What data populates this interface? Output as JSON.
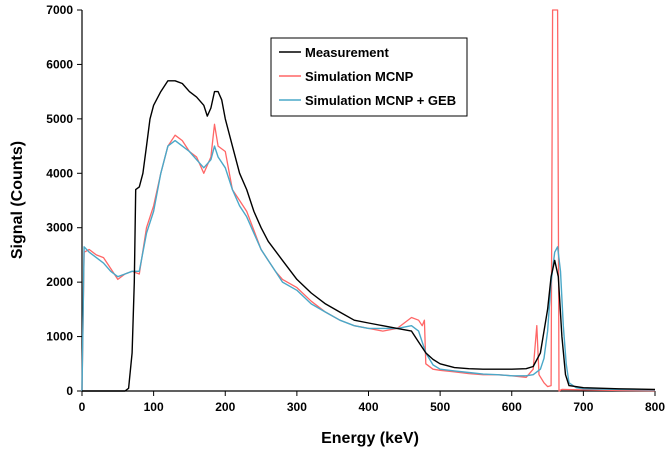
{
  "chart_data": {
    "type": "line",
    "xlabel": "Energy (keV)",
    "ylabel": "Signal (Counts)",
    "xlim": [
      0,
      800
    ],
    "ylim": [
      0,
      7000
    ],
    "x_ticks": [
      "0",
      "100",
      "200",
      "300",
      "400",
      "500",
      "600",
      "700",
      "800"
    ],
    "y_ticks": [
      "0",
      "1000",
      "2000",
      "3000",
      "4000",
      "5000",
      "6000",
      "7000"
    ],
    "grid": false,
    "legend_position": "top-right",
    "series": [
      {
        "name": "Measurement",
        "color": "#000000",
        "points": [
          [
            0,
            0
          ],
          [
            60,
            0
          ],
          [
            65,
            50
          ],
          [
            70,
            700
          ],
          [
            73,
            2000
          ],
          [
            75,
            3700
          ],
          [
            80,
            3750
          ],
          [
            85,
            4000
          ],
          [
            90,
            4500
          ],
          [
            95,
            5000
          ],
          [
            100,
            5250
          ],
          [
            110,
            5500
          ],
          [
            120,
            5700
          ],
          [
            130,
            5700
          ],
          [
            140,
            5650
          ],
          [
            150,
            5500
          ],
          [
            160,
            5400
          ],
          [
            170,
            5250
          ],
          [
            175,
            5050
          ],
          [
            180,
            5200
          ],
          [
            185,
            5500
          ],
          [
            190,
            5500
          ],
          [
            195,
            5350
          ],
          [
            200,
            5000
          ],
          [
            210,
            4500
          ],
          [
            220,
            4000
          ],
          [
            230,
            3700
          ],
          [
            240,
            3300
          ],
          [
            250,
            3000
          ],
          [
            260,
            2750
          ],
          [
            280,
            2400
          ],
          [
            300,
            2050
          ],
          [
            320,
            1800
          ],
          [
            340,
            1600
          ],
          [
            360,
            1450
          ],
          [
            380,
            1300
          ],
          [
            400,
            1250
          ],
          [
            420,
            1200
          ],
          [
            440,
            1150
          ],
          [
            460,
            1100
          ],
          [
            470,
            900
          ],
          [
            480,
            700
          ],
          [
            490,
            580
          ],
          [
            500,
            500
          ],
          [
            520,
            430
          ],
          [
            540,
            410
          ],
          [
            560,
            400
          ],
          [
            580,
            400
          ],
          [
            600,
            400
          ],
          [
            620,
            410
          ],
          [
            630,
            450
          ],
          [
            640,
            700
          ],
          [
            650,
            1500
          ],
          [
            655,
            2100
          ],
          [
            660,
            2400
          ],
          [
            665,
            2100
          ],
          [
            670,
            1000
          ],
          [
            675,
            300
          ],
          [
            680,
            100
          ],
          [
            700,
            60
          ],
          [
            750,
            40
          ],
          [
            800,
            30
          ]
        ]
      },
      {
        "name": "Simulation MCNP",
        "color": "#ff6666",
        "points": [
          [
            0,
            0
          ],
          [
            3,
            2550
          ],
          [
            10,
            2600
          ],
          [
            20,
            2500
          ],
          [
            30,
            2450
          ],
          [
            40,
            2250
          ],
          [
            50,
            2050
          ],
          [
            60,
            2150
          ],
          [
            70,
            2200
          ],
          [
            80,
            2150
          ],
          [
            90,
            3000
          ],
          [
            100,
            3400
          ],
          [
            110,
            4000
          ],
          [
            120,
            4500
          ],
          [
            130,
            4700
          ],
          [
            140,
            4600
          ],
          [
            150,
            4400
          ],
          [
            160,
            4300
          ],
          [
            170,
            4000
          ],
          [
            180,
            4300
          ],
          [
            185,
            4900
          ],
          [
            190,
            4500
          ],
          [
            200,
            4400
          ],
          [
            210,
            3700
          ],
          [
            220,
            3500
          ],
          [
            230,
            3300
          ],
          [
            240,
            2950
          ],
          [
            250,
            2600
          ],
          [
            260,
            2400
          ],
          [
            270,
            2200
          ],
          [
            280,
            2050
          ],
          [
            300,
            1900
          ],
          [
            320,
            1650
          ],
          [
            340,
            1450
          ],
          [
            360,
            1300
          ],
          [
            380,
            1200
          ],
          [
            400,
            1150
          ],
          [
            420,
            1100
          ],
          [
            440,
            1150
          ],
          [
            460,
            1350
          ],
          [
            470,
            1300
          ],
          [
            475,
            1200
          ],
          [
            478,
            1300
          ],
          [
            480,
            500
          ],
          [
            490,
            400
          ],
          [
            500,
            380
          ],
          [
            520,
            350
          ],
          [
            540,
            320
          ],
          [
            560,
            300
          ],
          [
            580,
            300
          ],
          [
            600,
            280
          ],
          [
            620,
            250
          ],
          [
            630,
            400
          ],
          [
            635,
            1200
          ],
          [
            638,
            300
          ],
          [
            645,
            150
          ],
          [
            650,
            80
          ],
          [
            655,
            100
          ],
          [
            657,
            7000
          ],
          [
            664,
            7000
          ],
          [
            666,
            0
          ],
          [
            670,
            30
          ],
          [
            700,
            20
          ],
          [
            750,
            10
          ],
          [
            800,
            5
          ]
        ]
      },
      {
        "name": "Simulation MCNP + GEB",
        "color": "#4aa8c8",
        "points": [
          [
            0,
            0
          ],
          [
            3,
            2650
          ],
          [
            10,
            2550
          ],
          [
            20,
            2450
          ],
          [
            30,
            2350
          ],
          [
            40,
            2200
          ],
          [
            50,
            2100
          ],
          [
            60,
            2150
          ],
          [
            70,
            2200
          ],
          [
            80,
            2200
          ],
          [
            90,
            2900
          ],
          [
            100,
            3300
          ],
          [
            110,
            4000
          ],
          [
            120,
            4500
          ],
          [
            130,
            4600
          ],
          [
            140,
            4500
          ],
          [
            150,
            4400
          ],
          [
            160,
            4250
          ],
          [
            170,
            4100
          ],
          [
            180,
            4250
          ],
          [
            185,
            4500
          ],
          [
            190,
            4300
          ],
          [
            200,
            4100
          ],
          [
            210,
            3700
          ],
          [
            220,
            3400
          ],
          [
            230,
            3200
          ],
          [
            240,
            2900
          ],
          [
            250,
            2600
          ],
          [
            260,
            2400
          ],
          [
            270,
            2200
          ],
          [
            280,
            2000
          ],
          [
            300,
            1850
          ],
          [
            320,
            1600
          ],
          [
            340,
            1450
          ],
          [
            360,
            1300
          ],
          [
            380,
            1200
          ],
          [
            400,
            1150
          ],
          [
            420,
            1150
          ],
          [
            440,
            1150
          ],
          [
            460,
            1200
          ],
          [
            470,
            1100
          ],
          [
            480,
            700
          ],
          [
            490,
            480
          ],
          [
            500,
            400
          ],
          [
            520,
            370
          ],
          [
            540,
            340
          ],
          [
            560,
            310
          ],
          [
            580,
            300
          ],
          [
            600,
            280
          ],
          [
            620,
            280
          ],
          [
            630,
            300
          ],
          [
            640,
            400
          ],
          [
            645,
            600
          ],
          [
            650,
            1100
          ],
          [
            655,
            2000
          ],
          [
            660,
            2550
          ],
          [
            664,
            2650
          ],
          [
            668,
            2200
          ],
          [
            672,
            1200
          ],
          [
            676,
            500
          ],
          [
            680,
            150
          ],
          [
            690,
            60
          ],
          [
            700,
            40
          ],
          [
            750,
            30
          ],
          [
            800,
            20
          ]
        ]
      }
    ]
  }
}
